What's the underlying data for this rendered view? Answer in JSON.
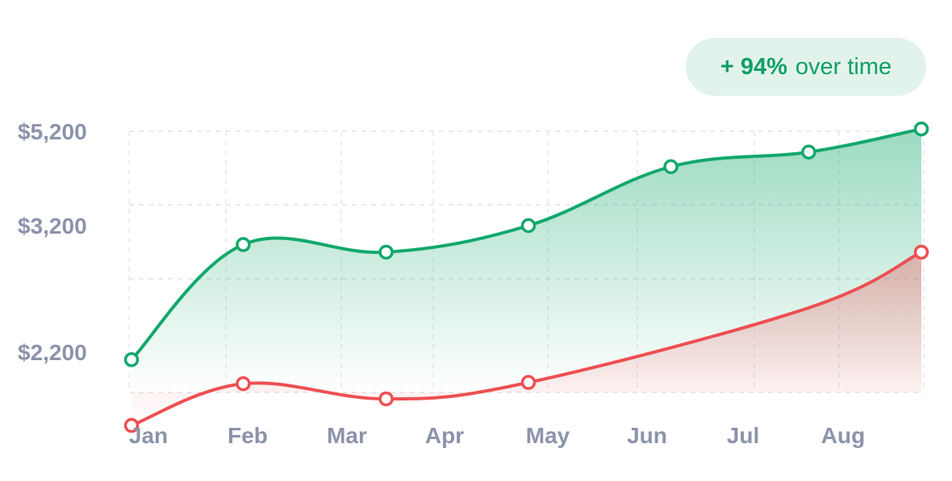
{
  "badge": {
    "value": "+ 94%",
    "text": "over time"
  },
  "chart_data": {
    "type": "area",
    "categories": [
      "Jan",
      "Feb",
      "Mar",
      "Apr",
      "May",
      "Jun",
      "Jul",
      "Aug"
    ],
    "y_ticks": [
      {
        "value": 5200,
        "label": "$5,200"
      },
      {
        "value": 3200,
        "label": "$3,200"
      },
      {
        "value": 2200,
        "label": "$2,200"
      }
    ],
    "series": [
      {
        "color": "#12a86b",
        "points": [
          {
            "x": 0.0,
            "y": 2140
          },
          {
            "x": 1.15,
            "y": 3050
          },
          {
            "x": 2.6,
            "y": 2990
          },
          {
            "x": 4.0,
            "y": 3200
          },
          {
            "x": 5.45,
            "y": 4450
          },
          {
            "x": 6.85,
            "y": 4760
          },
          {
            "x": 7.75,
            "y": 5250
          }
        ]
      },
      {
        "color": "#ee4f52",
        "points": [
          {
            "x": 0.0,
            "y": 1620
          },
          {
            "x": 1.15,
            "y": 1950
          },
          {
            "x": 2.6,
            "y": 1830
          },
          {
            "x": 4.0,
            "y": 1960
          },
          {
            "x": 6.85,
            "y": 2550
          },
          {
            "x": 7.75,
            "y": 2990
          }
        ]
      }
    ],
    "grid": true,
    "colors": {
      "tick_label": "#8c93ab",
      "grid": "#dfe2ea"
    }
  }
}
